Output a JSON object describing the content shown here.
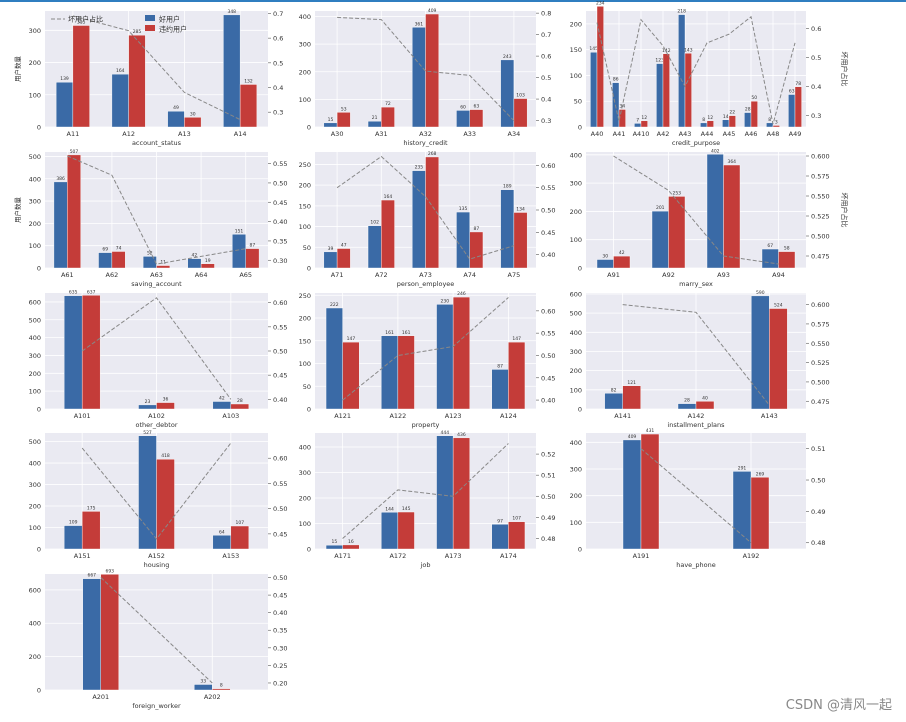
{
  "colors": {
    "good": "#3a6aa6",
    "bad": "#c43c39",
    "ratio": "#888888",
    "grid_bg": "#eaeaf2"
  },
  "legend": {
    "ratio": "坏用户占比",
    "good": "好用户",
    "bad": "违约用户"
  },
  "ylabels": {
    "count": "用户数量",
    "ratio": "坏用户占比"
  },
  "watermark": "CSDN @清风一起",
  "chart_data": [
    {
      "type": "bar",
      "xlabel": "account_status",
      "categories": [
        "A11",
        "A12",
        "A13",
        "A14"
      ],
      "series": [
        {
          "name": "好用户",
          "values": [
            139,
            164,
            49,
            348
          ]
        },
        {
          "name": "违约用户",
          "values": [
            315,
            285,
            30,
            132
          ]
        }
      ],
      "ratio": [
        0.69,
        0.63,
        0.38,
        0.27
      ],
      "ylim": [
        0,
        360
      ],
      "yticks": [
        0,
        100,
        200,
        300
      ],
      "y2lim": [
        0.24,
        0.71
      ],
      "y2ticks": [
        "0.3",
        "0.4",
        "0.5",
        "0.6",
        "0.7"
      ],
      "ylabel": "用户数量",
      "show_legend": true
    },
    {
      "type": "bar",
      "xlabel": "history_credit",
      "categories": [
        "A30",
        "A31",
        "A32",
        "A33",
        "A34"
      ],
      "series": [
        {
          "name": "好用户",
          "values": [
            15,
            21,
            361,
            60,
            243
          ]
        },
        {
          "name": "违约用户",
          "values": [
            53,
            72,
            409,
            63,
            103
          ]
        }
      ],
      "ratio": [
        0.78,
        0.77,
        0.53,
        0.51,
        0.3
      ],
      "ylim": [
        0,
        420
      ],
      "yticks": [
        0,
        100,
        200,
        300,
        400
      ],
      "y2lim": [
        0.27,
        0.81
      ],
      "y2ticks": [
        "0.3",
        "0.4",
        "0.5",
        "0.6",
        "0.7",
        "0.8"
      ]
    },
    {
      "type": "bar",
      "xlabel": "credit_purpose",
      "categories": [
        "A40",
        "A41",
        "A410",
        "A42",
        "A43",
        "A44",
        "A45",
        "A46",
        "A48",
        "A49"
      ],
      "series": [
        {
          "name": "好用户",
          "values": [
            145,
            86,
            7,
            123,
            218,
            8,
            14,
            28,
            8,
            63
          ]
        },
        {
          "name": "违约用户",
          "values": [
            234,
            34,
            12,
            142,
            143,
            12,
            22,
            50,
            3,
            78
          ]
        }
      ],
      "ratio": [
        0.62,
        0.28,
        0.63,
        0.54,
        0.4,
        0.55,
        0.58,
        0.64,
        0.27,
        0.55
      ],
      "ylim": [
        0,
        225
      ],
      "yticks": [
        0,
        50,
        100,
        150,
        200
      ],
      "y2lim": [
        0.26,
        0.66
      ],
      "y2ticks": [
        "0.3",
        "0.4",
        "0.5",
        "0.6"
      ],
      "y2label": "坏用户占比"
    },
    {
      "type": "bar",
      "xlabel": "saving_account",
      "categories": [
        "A61",
        "A62",
        "A63",
        "A64",
        "A65"
      ],
      "series": [
        {
          "name": "好用户",
          "values": [
            386,
            69,
            52,
            42,
            151
          ]
        },
        {
          "name": "违约用户",
          "values": [
            507,
            74,
            11,
            19,
            87
          ]
        }
      ],
      "ratio": [
        0.57,
        0.52,
        0.29,
        0.31,
        0.33
      ],
      "ylim": [
        0,
        520
      ],
      "yticks": [
        0,
        100,
        200,
        300,
        400,
        500
      ],
      "y2lim": [
        0.28,
        0.58
      ],
      "y2ticks": [
        "0.30",
        "0.35",
        "0.40",
        "0.45",
        "0.50",
        "0.55"
      ],
      "ylabel": "用户数量"
    },
    {
      "type": "bar",
      "xlabel": "person_employee",
      "categories": [
        "A71",
        "A72",
        "A73",
        "A74",
        "A75"
      ],
      "series": [
        {
          "name": "好用户",
          "values": [
            39,
            102,
            235,
            135,
            189
          ]
        },
        {
          "name": "违约用户",
          "values": [
            47,
            164,
            268,
            87,
            134
          ]
        }
      ],
      "ratio": [
        0.55,
        0.62,
        0.53,
        0.39,
        0.42
      ],
      "ylim": [
        0,
        280
      ],
      "yticks": [
        0,
        50,
        100,
        150,
        200,
        250
      ],
      "y2lim": [
        0.37,
        0.63
      ],
      "y2ticks": [
        "0.40",
        "0.45",
        "0.50",
        "0.55",
        "0.60"
      ]
    },
    {
      "type": "bar",
      "xlabel": "marry_sex",
      "categories": [
        "A91",
        "A92",
        "A93",
        "A94"
      ],
      "series": [
        {
          "name": "好用户",
          "values": [
            30,
            201,
            402,
            67
          ]
        },
        {
          "name": "违约用户",
          "values": [
            42,
            253,
            364,
            58
          ]
        }
      ],
      "ratio": [
        0.6,
        0.557,
        0.475,
        0.465
      ],
      "ylim": [
        0,
        410
      ],
      "yticks": [
        0,
        100,
        200,
        300,
        400
      ],
      "y2lim": [
        0.46,
        0.605
      ],
      "y2ticks": [
        "0.475",
        "0.500",
        "0.525",
        "0.550",
        "0.575",
        "0.600"
      ],
      "y2label": "坏用户占比"
    },
    {
      "type": "bar",
      "xlabel": "other_debtor",
      "categories": [
        "A101",
        "A102",
        "A103"
      ],
      "series": [
        {
          "name": "好用户",
          "values": [
            635,
            23,
            42
          ]
        },
        {
          "name": "违约用户",
          "values": [
            637,
            36,
            28
          ]
        }
      ],
      "ratio": [
        0.5,
        0.61,
        0.4
      ],
      "ylim": [
        0,
        650
      ],
      "yticks": [
        0,
        100,
        200,
        300,
        400,
        500,
        600
      ],
      "y2lim": [
        0.38,
        0.62
      ],
      "y2ticks": [
        "0.40",
        "0.45",
        "0.50",
        "0.55",
        "0.60"
      ]
    },
    {
      "type": "bar",
      "xlabel": "property",
      "categories": [
        "A121",
        "A122",
        "A123",
        "A124"
      ],
      "series": [
        {
          "name": "好用户",
          "values": [
            222,
            161,
            230,
            87
          ]
        },
        {
          "name": "违约用户",
          "values": [
            147,
            161,
            246,
            147
          ]
        }
      ],
      "ratio": [
        0.4,
        0.5,
        0.52,
        0.63
      ],
      "ylim": [
        0,
        255
      ],
      "yticks": [
        0,
        50,
        100,
        150,
        200,
        250
      ],
      "y2lim": [
        0.38,
        0.64
      ],
      "y2ticks": [
        "0.40",
        "0.45",
        "0.50",
        "0.55",
        "0.60"
      ]
    },
    {
      "type": "bar",
      "xlabel": "installment_plans",
      "categories": [
        "A141",
        "A142",
        "A143"
      ],
      "series": [
        {
          "name": "好用户",
          "values": [
            82,
            28,
            590
          ]
        },
        {
          "name": "违约用户",
          "values": [
            121,
            40,
            524
          ]
        }
      ],
      "ratio": [
        0.6,
        0.59,
        0.47
      ],
      "ylim": [
        0,
        605
      ],
      "yticks": [
        0,
        100,
        200,
        300,
        400,
        500,
        600
      ],
      "y2lim": [
        0.465,
        0.615
      ],
      "y2ticks": [
        "0.475",
        "0.500",
        "0.525",
        "0.550",
        "0.575",
        "0.600"
      ]
    },
    {
      "type": "bar",
      "xlabel": "housing",
      "categories": [
        "A151",
        "A152",
        "A153"
      ],
      "series": [
        {
          "name": "好用户",
          "values": [
            109,
            527,
            64
          ]
        },
        {
          "name": "违约用户",
          "values": [
            175,
            418,
            107
          ]
        }
      ],
      "ratio": [
        0.62,
        0.44,
        0.63
      ],
      "ylim": [
        0,
        540
      ],
      "yticks": [
        0,
        100,
        200,
        300,
        400,
        500
      ],
      "y2lim": [
        0.42,
        0.65
      ],
      "y2ticks": [
        "0.45",
        "0.50",
        "0.55",
        "0.60"
      ]
    },
    {
      "type": "bar",
      "xlabel": "job",
      "categories": [
        "A171",
        "A172",
        "A173",
        "A174"
      ],
      "series": [
        {
          "name": "好用户",
          "values": [
            15,
            144,
            444,
            97
          ]
        },
        {
          "name": "违约用户",
          "values": [
            16,
            145,
            436,
            107
          ]
        }
      ],
      "ratio": [
        0.48,
        0.503,
        0.5,
        0.525
      ],
      "ylim": [
        0,
        455
      ],
      "yticks": [
        0,
        100,
        200,
        300,
        400
      ],
      "y2lim": [
        0.475,
        0.53
      ],
      "y2ticks": [
        "0.48",
        "0.49",
        "0.50",
        "0.51",
        "0.52"
      ]
    },
    {
      "type": "bar",
      "xlabel": "have_phone",
      "categories": [
        "A191",
        "A192"
      ],
      "series": [
        {
          "name": "好用户",
          "values": [
            409,
            291
          ]
        },
        {
          "name": "违约用户",
          "values": [
            431,
            269
          ]
        }
      ],
      "ratio": [
        0.51,
        0.48
      ],
      "ylim": [
        0,
        435
      ],
      "yticks": [
        0,
        100,
        200,
        300,
        400
      ],
      "y2lim": [
        0.478,
        0.515
      ],
      "y2ticks": [
        "0.48",
        "0.49",
        "0.50",
        "0.51"
      ]
    },
    {
      "type": "bar",
      "xlabel": "foreign_worker",
      "categories": [
        "A201",
        "A202"
      ],
      "series": [
        {
          "name": "好用户",
          "values": [
            667,
            33
          ]
        },
        {
          "name": "违约用户",
          "values": [
            693,
            8
          ]
        }
      ],
      "ratio": [
        0.5,
        0.2
      ],
      "ylim": [
        0,
        695
      ],
      "yticks": [
        0,
        200,
        400,
        600
      ],
      "y2lim": [
        0.18,
        0.51
      ],
      "y2ticks": [
        "0.20",
        "0.25",
        "0.30",
        "0.35",
        "0.40",
        "0.45",
        "0.50"
      ]
    }
  ]
}
